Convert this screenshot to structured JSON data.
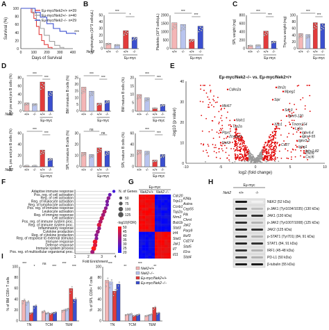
{
  "chart_data": [
    {
      "panel": "A",
      "type": "line",
      "ylabel": "Survival (%)",
      "xlabel": "Days of Survival",
      "yticks": [
        "0",
        "20",
        "40",
        "60",
        "80",
        "100"
      ],
      "xticks": [
        "0",
        "100",
        "200",
        "300",
        "400"
      ],
      "series": [
        {
          "name": "Eμ-myc/Nek2+/+ n=39",
          "color": "#e23b3b",
          "points": [
            [
              0,
              100
            ],
            [
              50,
              100
            ],
            [
              80,
              90
            ],
            [
              100,
              75
            ],
            [
              120,
              55
            ],
            [
              140,
              35
            ],
            [
              160,
              20
            ],
            [
              180,
              10
            ],
            [
              210,
              3
            ],
            [
              240,
              0
            ]
          ]
        },
        {
          "name": "Eμ-myc/Nek2+/− n=40",
          "color": "#a0a0a0",
          "points": [
            [
              0,
              100
            ],
            [
              60,
              100
            ],
            [
              90,
              88
            ],
            [
              120,
              70
            ],
            [
              150,
              50
            ],
            [
              180,
              33
            ],
            [
              220,
              18
            ],
            [
              260,
              8
            ],
            [
              300,
              3
            ],
            [
              330,
              0
            ]
          ]
        },
        {
          "name": "Eμ-myc/Nek2−/− n=29",
          "color": "#3b4fcf",
          "points": [
            [
              0,
              100
            ],
            [
              70,
              100
            ],
            [
              110,
              90
            ],
            [
              150,
              78
            ],
            [
              200,
              62
            ],
            [
              250,
              50
            ],
            [
              300,
              43
            ],
            [
              350,
              38
            ],
            [
              420,
              35
            ]
          ]
        }
      ],
      "annotation": "***"
    },
    {
      "panel": "B1",
      "type": "bar",
      "ylabel": "Lymphocytes (10^3 cells/μL)",
      "yticks": [
        "0",
        "10",
        "20",
        "30",
        "40",
        "50"
      ],
      "categories": [
        "+/+",
        "-/-",
        "+/+",
        "-/-"
      ],
      "values": [
        8,
        6,
        27,
        17
      ],
      "ylim": [
        0,
        50
      ],
      "group_label": "Eμ-myc",
      "row_label": "Nek2",
      "sig": [
        "***",
        "*"
      ]
    },
    {
      "panel": "B2",
      "type": "bar",
      "ylabel": "Platelets (10^3 cells/μL)",
      "yticks": [
        "0",
        "500",
        "1000",
        "1500",
        "2000"
      ],
      "categories": [
        "+/+",
        "-/-",
        "+/+",
        "-/-"
      ],
      "values": [
        1550,
        1450,
        550,
        1350
      ],
      "ylim": [
        0,
        2000
      ],
      "group_label": "Eμ-myc",
      "sig": [
        "***",
        "***"
      ]
    },
    {
      "panel": "C1",
      "type": "bar",
      "ylabel": "SPL weight (mg)",
      "yticks": [
        "0",
        "200",
        "400",
        "600",
        "800"
      ],
      "categories": [
        "+/+",
        "-/-",
        "+/+",
        "-/-"
      ],
      "values": [
        80,
        90,
        420,
        180
      ],
      "ylim": [
        0,
        800
      ],
      "group_label": "Eμ-myc",
      "sig": [
        "***",
        "***"
      ]
    },
    {
      "panel": "C2",
      "type": "bar",
      "ylabel": "Thymus weight (mg)",
      "yticks": [
        "0",
        "20",
        "40",
        "60",
        "80",
        "100"
      ],
      "categories": [
        "+/+",
        "-/-",
        "+/+",
        "-/-"
      ],
      "values": [
        45,
        42,
        78,
        75
      ],
      "ylim": [
        0,
        100
      ],
      "group_label": "Eμ-myc",
      "sig": [
        "***",
        "***"
      ]
    },
    {
      "panel": "D1",
      "type": "bar",
      "ylabel": "BM pre and pro B cells (%)",
      "yticks": [
        "0",
        "20",
        "40",
        "60",
        "80"
      ],
      "categories": [
        "+/+",
        "-/-",
        "+/+",
        "-/-"
      ],
      "values": [
        20,
        18,
        70,
        48
      ],
      "ylim": [
        0,
        80
      ],
      "group_label": "Eμ-myc",
      "row_label": "Nek2",
      "sig": [
        "***",
        "***"
      ]
    },
    {
      "panel": "D2",
      "type": "bar",
      "ylabel": "BM immature B cells (%)",
      "yticks": [
        "0",
        "5",
        "10",
        "15",
        "20",
        "25"
      ],
      "categories": [
        "+/+",
        "-/-",
        "+/+",
        "-/-"
      ],
      "values": [
        18,
        15,
        6,
        8
      ],
      "ylim": [
        0,
        25
      ],
      "group_label": "Eμ-myc",
      "sig": [
        "***",
        "***"
      ]
    },
    {
      "panel": "D3",
      "type": "bar",
      "ylabel": "BM mature B cells (%)",
      "yticks": [
        "0",
        "5",
        "10",
        "15",
        "20"
      ],
      "categories": [
        "+/+",
        "-/-",
        "+/+",
        "-/-"
      ],
      "values": [
        10,
        8,
        2,
        4
      ],
      "ylim": [
        0,
        20
      ],
      "group_label": "Eμ-myc",
      "sig": [
        "***",
        "***"
      ]
    },
    {
      "panel": "D4",
      "type": "bar",
      "ylabel": "SPL pre and pro B cells (%)",
      "yticks": [
        "0",
        "20",
        "40",
        "60"
      ],
      "categories": [
        "+/+",
        "-/-",
        "+/+",
        "-/-"
      ],
      "values": [
        2,
        2,
        30,
        15
      ],
      "ylim": [
        0,
        60
      ],
      "group_label": "Eμ-myc",
      "row_label": "Nek2",
      "sig": [
        "***",
        "***"
      ]
    },
    {
      "panel": "D5",
      "type": "bar",
      "ylabel": "SPL immature B cells (%)",
      "yticks": [
        "0",
        "10",
        "20",
        "30"
      ],
      "categories": [
        "+/+",
        "-/-",
        "+/+",
        "-/-"
      ],
      "values": [
        13,
        11,
        17,
        14
      ],
      "ylim": [
        0,
        30
      ],
      "group_label": "Eμ-myc",
      "sig": [
        "ns",
        "ns"
      ]
    },
    {
      "panel": "D6",
      "type": "bar",
      "ylabel": "SPL mature B cells (%)",
      "yticks": [
        "0",
        "20",
        "40",
        "60"
      ],
      "categories": [
        "+/+",
        "-/-",
        "+/+",
        "-/-"
      ],
      "values": [
        30,
        28,
        12,
        22
      ],
      "ylim": [
        0,
        60
      ],
      "group_label": "Eμ-myc",
      "sig": [
        "***",
        "***"
      ]
    },
    {
      "panel": "E",
      "type": "scatter",
      "title": "Eμ-myc/Nek2−/− vs. Eμ-myc/Nek2+/+",
      "xlabel": "log2 (fold change)",
      "ylabel": "-log10 (p value)",
      "xticks": [
        "-10",
        "-5",
        "0",
        "5",
        "10"
      ],
      "yticks": [
        "0",
        "10",
        "20",
        "30",
        "40"
      ],
      "xlim": [
        -10,
        10
      ],
      "ylim": [
        0,
        40
      ],
      "labels": [
        {
          "text": "Cdkn2a",
          "x": -4,
          "y": 36
        },
        {
          "text": "Itm2c",
          "x": 3,
          "y": 37
        },
        {
          "text": "Mpeg1",
          "x": 4,
          "y": 35
        },
        {
          "text": "Sipi",
          "x": 2.5,
          "y": 31
        },
        {
          "text": "Mki67",
          "x": -5,
          "y": 28
        },
        {
          "text": "Sdc3",
          "x": 4,
          "y": 26
        },
        {
          "text": "Igkv9-120",
          "x": 4.5,
          "y": 23
        },
        {
          "text": "Nolc1",
          "x": -3,
          "y": 21
        },
        {
          "text": "Xbp1",
          "x": 2.5,
          "y": 19
        },
        {
          "text": "Tmem154",
          "x": 5,
          "y": 19
        },
        {
          "text": "Ly6a",
          "x": 5.5,
          "y": 17
        },
        {
          "text": "Top2a",
          "x": -3.5,
          "y": 18
        },
        {
          "text": "Ighv4-4",
          "x": 6.5,
          "y": 15
        },
        {
          "text": "Ptprs",
          "x": -5,
          "y": 15
        },
        {
          "text": "Zcwpw1",
          "x": -4,
          "y": 13
        },
        {
          "text": "Igkv4-55",
          "x": 6.5,
          "y": 13
        },
        {
          "text": "Igkv3-2",
          "x": 6,
          "y": 11
        },
        {
          "text": "Nek2",
          "x": -5,
          "y": 10
        },
        {
          "text": "Cd27",
          "x": 3.5,
          "y": 9
        },
        {
          "text": "Ighg1",
          "x": 6,
          "y": 8
        },
        {
          "text": "Ighv1-82",
          "x": 7,
          "y": 6
        },
        {
          "text": "Cxcl9",
          "x": 7,
          "y": 5
        },
        {
          "text": "Cxcl6",
          "x": 7,
          "y": 3
        }
      ]
    },
    {
      "panel": "F",
      "type": "scatter",
      "xlabel": "Fold Enrichment",
      "xticks": [
        "1",
        "2",
        "3",
        "4"
      ],
      "xlim": [
        1,
        4
      ],
      "categories": [
        "Adaptive immune response",
        "Pos. reg. of cell activation",
        "Reg. of cell activation",
        "Reg. of leukocyte activation",
        "Reg. of lymphocyte activation",
        "Pos. reg. of immune response",
        "Leukocyte activation",
        "Reg. of immune response",
        "Cell activation",
        "Pos. reg. of immune system proc.",
        "Reg. of immune system proc.",
        "Inflammatory response",
        "Cytokine production",
        "Reg. of cytokine production",
        "Reg. of response to external stimulus",
        "Immune response",
        "Defense response",
        "Immune system process",
        "Pos. reg. of multicellular organismal proc."
      ],
      "values": [
        3.9,
        3.6,
        3.5,
        3.4,
        3.4,
        3.3,
        3.2,
        3.1,
        3.0,
        2.9,
        2.8,
        2.8,
        2.7,
        2.6,
        2.6,
        2.5,
        2.5,
        2.4,
        2.3
      ],
      "sizes": [
        55,
        70,
        80,
        75,
        70,
        75,
        90,
        85,
        95,
        90,
        100,
        80,
        85,
        80,
        75,
        105,
        95,
        110,
        90
      ],
      "fdr": [
        25,
        30,
        35,
        33,
        32,
        35,
        40,
        38,
        42,
        40,
        45,
        36,
        37,
        35,
        34,
        48,
        45,
        50,
        38
      ],
      "legend_size_title": "N. of Genes",
      "legend_sizes": [
        "50",
        "75",
        "100",
        "125"
      ],
      "legend_color_title": "-log10(FDR)",
      "legend_color_ticks": [
        "20",
        "25",
        "30",
        "35",
        "40",
        "45",
        "50"
      ],
      "colorscale": [
        "#1a1aff",
        "#ff1a1a"
      ]
    },
    {
      "panel": "G",
      "type": "heatmap",
      "group_label": "Eμ-myc",
      "columns": [
        "Nek2+/+",
        "Nek2−/−"
      ],
      "genes": [
        "Cdc20",
        "Klf4a",
        "Trip13",
        "Aukra",
        "Ccnb1",
        "Cep55",
        "Top2a",
        "Plk",
        "Nrm2",
        "Chrnl",
        "Bub1b",
        "Jak2",
        "Stat3",
        "Parp9",
        "Irf4",
        "Ikzf3",
        "Stat1",
        "Cd274",
        "Jak1",
        "Stat5",
        "Il7",
        "Il1ra",
        "Il11",
        "Stat4"
      ],
      "n_rows": 24
    },
    {
      "panel": "H",
      "type": "table",
      "group_label": "Eμ-myc",
      "row_label": "Nek2",
      "columns": [
        "+/+",
        "-/-"
      ],
      "bands": [
        {
          "name": "NEK2 (52 kDa)",
          "a": 0.9,
          "b": 0.05
        },
        {
          "name": "p-JAK1 (Tyr1034/1035) (130 kDa)",
          "a": 0.8,
          "b": 0.25
        },
        {
          "name": "JAK1 (130 kDa)",
          "a": 0.85,
          "b": 0.8
        },
        {
          "name": "p-JAK2 (Tyr1007/1008) (125 kDa)",
          "a": 0.8,
          "b": 0.3
        },
        {
          "name": "JAK2 (125 kDa)",
          "a": 0.85,
          "b": 0.8
        },
        {
          "name": "p-STAT1 (Tyr701) (84, 91 kDa)",
          "a": 0.8,
          "b": 0.3
        },
        {
          "name": "STAT1 (84, 91 kDa)",
          "a": 0.85,
          "b": 0.8
        },
        {
          "name": "IRF1 (45-48 kDa)",
          "a": 0.8,
          "b": 0.3
        },
        {
          "name": "PD-L1 (50 kDa)",
          "a": 0.75,
          "b": 0.3
        },
        {
          "name": "β-tubulin (55 kDa)",
          "a": 0.9,
          "b": 0.9
        }
      ]
    },
    {
      "panel": "I1",
      "type": "bar",
      "ylabel": "% of BM CD8+ T cells",
      "yticks": [
        "0",
        "20",
        "40",
        "60",
        "80",
        "100"
      ],
      "categories": [
        "TN",
        "TCM",
        "TEM"
      ],
      "series": [
        {
          "name": "Nek2+/+",
          "color": "#f4b6b6",
          "values": [
            38,
            18,
            20
          ]
        },
        {
          "name": "Nek2−/−",
          "color": "#b9c4ee",
          "values": [
            35,
            15,
            22
          ]
        },
        {
          "name": "Eμ-myc/Nek2+/+",
          "color": "#e23b3b",
          "values": [
            15,
            14,
            60
          ]
        },
        {
          "name": "Eμ-myc/Nek2−/−",
          "color": "#3b4fcf",
          "values": [
            28,
            16,
            40
          ]
        }
      ],
      "ylim": [
        0,
        100
      ],
      "sig": [
        "***",
        "*",
        "ns",
        "***",
        "***",
        "***"
      ]
    },
    {
      "panel": "I2",
      "type": "bar",
      "ylabel": "% of SPL CD8+ T cells",
      "yticks": [
        "0",
        "20",
        "40",
        "60",
        "80",
        "100"
      ],
      "categories": [
        "TN",
        "TCM",
        "TEM"
      ],
      "series": [
        {
          "name": "Nek2+/+",
          "color": "#f4b6b6",
          "values": [
            75,
            12,
            10
          ]
        },
        {
          "name": "Nek2−/−",
          "color": "#b9c4ee",
          "values": [
            72,
            13,
            12
          ]
        },
        {
          "name": "Eμ-myc/Nek2+/+",
          "color": "#e23b3b",
          "values": [
            55,
            10,
            25
          ]
        },
        {
          "name": "Eμ-myc/Nek2−/−",
          "color": "#3b4fcf",
          "values": [
            68,
            12,
            15
          ]
        }
      ],
      "ylim": [
        0,
        100
      ],
      "sig": [
        "***",
        "**",
        "***",
        "**"
      ]
    }
  ],
  "legend_I": [
    "Nek2+/+",
    "Nek2−/−",
    "Eμ-myc/Nek2+/+",
    "Eμ-myc/Nek2−/−"
  ],
  "panel_letters": [
    "A",
    "B",
    "C",
    "D",
    "E",
    "F",
    "G",
    "H",
    "I"
  ]
}
